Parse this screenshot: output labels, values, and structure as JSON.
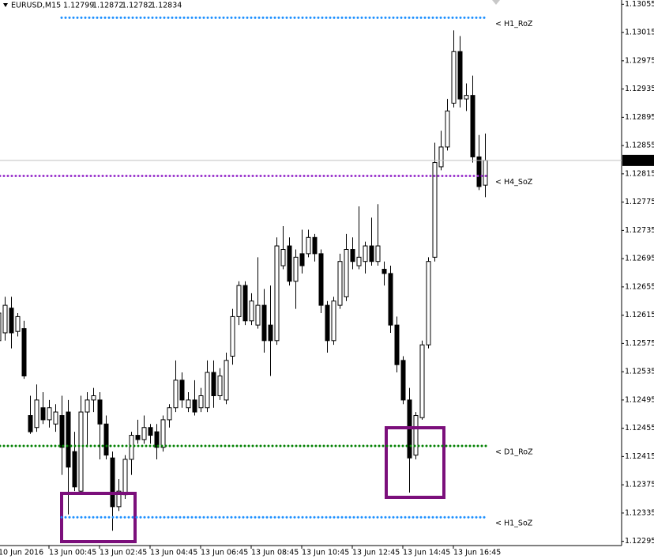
{
  "chart_data": {
    "type": "candlestick",
    "title": "EURUSD,M15",
    "categories": [
      "10 Jun 2016",
      null,
      null,
      null,
      null,
      null,
      null,
      null,
      "13 Jun 00:45",
      null,
      null,
      null,
      null,
      null,
      null,
      null,
      "13 Jun 02:45",
      null,
      null,
      null,
      null,
      null,
      null,
      null,
      "13 Jun 04:45",
      null,
      null,
      null,
      null,
      null,
      null,
      null,
      "13 Jun 06:45",
      null,
      null,
      null,
      null,
      null,
      null,
      null,
      "13 Jun 08:45",
      null,
      null,
      null,
      null,
      null,
      null,
      null,
      "13 Jun 10:45",
      null,
      null,
      null,
      null,
      null,
      null,
      null,
      "13 Jun 12:45",
      null,
      null,
      null,
      null,
      null,
      null,
      null,
      "13 Jun 14:45",
      null,
      null,
      null,
      null,
      null,
      null,
      null,
      "13 Jun 16:45",
      null,
      null,
      null,
      null,
      null
    ],
    "open": [
      1.12579,
      1.1259,
      1.12625,
      1.12592,
      1.12596,
      1.12473,
      1.12456,
      1.12484,
      1.12467,
      1.12461,
      1.12473,
      1.12478,
      1.12422,
      1.12366,
      1.12478,
      1.12495,
      1.12495,
      1.12461,
      1.12413,
      1.12344,
      1.12361,
      1.12411,
      1.12445,
      1.12439,
      1.12456,
      1.1245,
      1.12428,
      1.12467,
      1.12484,
      1.12523,
      1.12484,
      1.12495,
      1.12484,
      1.12484,
      1.12534,
      1.12501,
      1.12495,
      1.12557,
      1.12613,
      1.12657,
      1.12607,
      1.12601,
      1.12629,
      1.12601,
      1.12579,
      1.12685,
      1.12713,
      1.12663,
      1.12702,
      1.12702,
      1.12725,
      1.12702,
      1.12629,
      1.12579,
      1.12629,
      1.12641,
      1.12708,
      1.12685,
      1.12691,
      1.12713,
      1.12691,
      1.1268,
      1.12674,
      1.12601,
      1.12551,
      1.12495,
      1.12417,
      1.1247,
      1.12573,
      1.12697,
      1.12825,
      1.12853,
      1.12915,
      1.12988,
      1.12921,
      1.12926,
      1.12839,
      1.12799
    ],
    "high": [
      1.12629,
      1.12641,
      1.12641,
      1.12618,
      1.12607,
      1.12501,
      1.12517,
      1.12506,
      1.12495,
      1.12489,
      1.12501,
      1.12495,
      1.1245,
      1.12501,
      1.12506,
      1.12512,
      1.12506,
      1.12473,
      1.12422,
      1.12383,
      1.12417,
      1.1245,
      1.12467,
      1.12473,
      1.12461,
      1.12461,
      1.12473,
      1.12489,
      1.12551,
      1.12534,
      1.12506,
      1.12523,
      1.12512,
      1.12551,
      1.12551,
      1.1254,
      1.12562,
      1.12624,
      1.12663,
      1.12663,
      1.12646,
      1.12697,
      1.12652,
      1.12657,
      1.12725,
      1.12741,
      1.12725,
      1.12708,
      1.12736,
      1.12736,
      1.1273,
      1.12708,
      1.12635,
      1.12641,
      1.12702,
      1.1273,
      1.12725,
      1.12769,
      1.12719,
      1.12753,
      1.12772,
      1.12691,
      1.12685,
      1.12613,
      1.12557,
      1.12512,
      1.12478,
      1.12579,
      1.12697,
      1.12859,
      1.12876,
      1.12921,
      1.13018,
      1.1301,
      1.12943,
      1.12954,
      1.1287,
      1.12872
    ],
    "low": [
      1.12568,
      1.12579,
      1.12568,
      1.12585,
      1.12525,
      1.12447,
      1.1245,
      1.12461,
      1.12456,
      1.1245,
      1.12389,
      1.12333,
      1.12366,
      1.12361,
      1.12428,
      1.12478,
      1.12411,
      1.12411,
      1.1231,
      1.12338,
      1.12355,
      1.12389,
      1.12433,
      1.12433,
      1.12433,
      1.12411,
      1.12422,
      1.12456,
      1.12478,
      1.12484,
      1.12478,
      1.12473,
      1.12478,
      1.12478,
      1.12484,
      1.12495,
      1.12489,
      1.12545,
      1.12601,
      1.12601,
      1.12601,
      1.12596,
      1.12562,
      1.12529,
      1.12573,
      1.1268,
      1.12657,
      1.12624,
      1.12674,
      1.12697,
      1.12691,
      1.12618,
      1.12562,
      1.12573,
      1.12624,
      1.12635,
      1.1268,
      1.1268,
      1.12674,
      1.12685,
      1.12685,
      1.12657,
      1.1259,
      1.12534,
      1.12489,
      1.12364,
      1.12411,
      1.12467,
      1.12568,
      1.12691,
      1.1282,
      1.12848,
      1.12909,
      1.12909,
      1.12904,
      1.12831,
      1.12792,
      1.12782
    ],
    "close": [
      1.12618,
      1.12629,
      1.1259,
      1.12613,
      1.12529,
      1.1245,
      1.12495,
      1.12467,
      1.12484,
      1.12478,
      1.12428,
      1.124,
      1.12372,
      1.12478,
      1.12495,
      1.12501,
      1.12461,
      1.12417,
      1.12344,
      1.12366,
      1.12411,
      1.12445,
      1.12439,
      1.12456,
      1.12445,
      1.12428,
      1.12467,
      1.12484,
      1.12523,
      1.12495,
      1.12495,
      1.12478,
      1.12501,
      1.12534,
      1.12501,
      1.12529,
      1.12551,
      1.12613,
      1.12657,
      1.12607,
      1.12635,
      1.12629,
      1.12579,
      1.12579,
      1.12713,
      1.12708,
      1.12663,
      1.12697,
      1.12685,
      1.12725,
      1.12702,
      1.12629,
      1.12579,
      1.12635,
      1.12691,
      1.12708,
      1.12691,
      1.12697,
      1.12713,
      1.12691,
      1.12713,
      1.12674,
      1.12601,
      1.12545,
      1.12495,
      1.12413,
      1.12473,
      1.12573,
      1.12691,
      1.12831,
      1.12853,
      1.12904,
      1.12988,
      1.12921,
      1.12926,
      1.12839,
      1.12797,
      1.12834
    ],
    "ylim": [
      1.12289,
      1.13061
    ],
    "yticks": [
      1.13055,
      1.13015,
      1.12975,
      1.12935,
      1.12895,
      1.12855,
      1.12815,
      1.12775,
      1.12735,
      1.12695,
      1.12655,
      1.12615,
      1.12575,
      1.12535,
      1.12495,
      1.12455,
      1.12415,
      1.12375,
      1.12335,
      1.12295
    ],
    "levels": [
      {
        "name": "< H1_RoZ",
        "value": 1.13036,
        "color": "#1e90ff"
      },
      {
        "name": "< H4_SoZ",
        "value": 1.12812,
        "color": "#9932cc"
      },
      {
        "name": "< D1_RoZ",
        "value": 1.1243,
        "color": "#008000"
      },
      {
        "name": "< H1_SoZ",
        "value": 1.12329,
        "color": "#1e90ff"
      }
    ],
    "grid": false
  }
}
